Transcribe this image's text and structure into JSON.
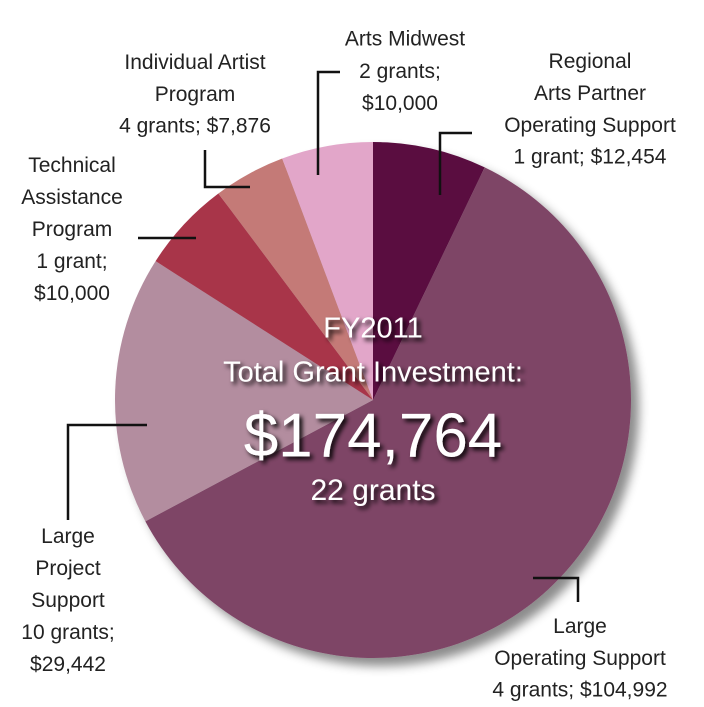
{
  "chart_data": {
    "type": "pie",
    "categories": [
      "Regional\nArts Partner\nOperating Support",
      "Large\nOperating Support",
      "Large\nProject\nSupport",
      "Technical\nAssistance\nProgram",
      "Individual Artist\nProgram",
      "Arts Midwest"
    ],
    "values": [
      12454,
      104992,
      29442,
      10000,
      7876,
      10000
    ],
    "value_labels": [
      "1 grant; $12,454",
      "4 grants; $104,992",
      "10 grants;\n$29,442",
      "1 grant;\n$10,000",
      "4 grants; $7,876",
      "2 grants;\n$10,000"
    ],
    "colors": [
      "#5a1040",
      "#7e4466",
      "#b38d9f",
      "#a8344a",
      "#c47a77",
      "#e2a6c9"
    ],
    "annotations": [
      "FY2011",
      "Total Grant Investment:",
      "$174,764",
      "22 grants"
    ]
  }
}
